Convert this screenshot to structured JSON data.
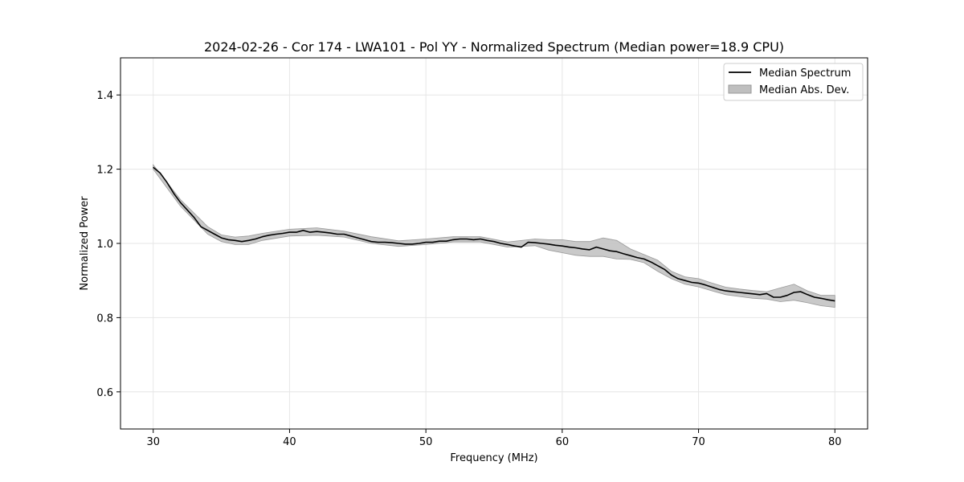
{
  "chart_data": {
    "type": "line",
    "title": "2024-02-26 - Cor 174 - LWA101 - Pol YY - Normalized Spectrum (Median power=18.9 CPU)",
    "xlabel": "Frequency (MHz)",
    "ylabel": "Normalized Power",
    "xlim": [
      27.6,
      82.4
    ],
    "ylim": [
      0.5,
      1.5
    ],
    "xticks": [
      30,
      40,
      50,
      60,
      70,
      80
    ],
    "xtick_labels": [
      "30",
      "40",
      "50",
      "60",
      "70",
      "80"
    ],
    "yticks": [
      0.6,
      0.8,
      1.0,
      1.2,
      1.4
    ],
    "ytick_labels": [
      "0.6",
      "0.8",
      "1.0",
      "1.2",
      "1.4"
    ],
    "grid": true,
    "legend_position": "top-right",
    "colors": {
      "line": "#000000",
      "band": "#bfbfbf",
      "band_edge": "#999999",
      "grid": "#e6e6e6"
    },
    "series": [
      {
        "name": "Median Spectrum",
        "type": "line",
        "x": [
          30,
          30.5,
          31,
          31.5,
          32,
          32.5,
          33,
          33.5,
          34,
          34.5,
          35,
          35.5,
          36,
          36.5,
          37,
          37.5,
          38,
          38.5,
          39,
          39.5,
          40,
          40.5,
          41,
          41.5,
          42,
          42.5,
          43,
          43.5,
          44,
          44.5,
          45,
          45.5,
          46,
          46.5,
          47,
          47.5,
          48,
          48.5,
          49,
          49.5,
          50,
          50.5,
          51,
          51.5,
          52,
          52.5,
          53,
          53.5,
          54,
          54.5,
          55,
          55.5,
          56,
          56.5,
          57,
          57.5,
          58,
          58.5,
          59,
          59.5,
          60,
          60.5,
          61,
          61.5,
          62,
          62.5,
          63,
          63.5,
          64,
          64.5,
          65,
          65.5,
          66,
          66.5,
          67,
          67.5,
          68,
          68.5,
          69,
          69.5,
          70,
          70.5,
          71,
          71.5,
          72,
          72.5,
          73,
          73.5,
          74,
          74.5,
          75,
          75.5,
          76,
          76.5,
          77,
          77.5,
          78,
          78.5,
          79,
          79.5,
          80
        ],
        "values": [
          1.205,
          1.19,
          1.165,
          1.135,
          1.11,
          1.09,
          1.07,
          1.045,
          1.035,
          1.025,
          1.015,
          1.01,
          1.008,
          1.005,
          1.008,
          1.012,
          1.018,
          1.022,
          1.025,
          1.027,
          1.03,
          1.03,
          1.035,
          1.03,
          1.032,
          1.03,
          1.028,
          1.025,
          1.025,
          1.02,
          1.015,
          1.01,
          1.005,
          1.003,
          1.003,
          1.002,
          1.0,
          0.998,
          0.998,
          1.0,
          1.003,
          1.003,
          1.006,
          1.006,
          1.01,
          1.012,
          1.012,
          1.01,
          1.012,
          1.008,
          1.005,
          1.0,
          0.997,
          0.993,
          0.99,
          1.003,
          1.002,
          1.0,
          0.998,
          0.995,
          0.993,
          0.99,
          0.988,
          0.985,
          0.983,
          0.99,
          0.985,
          0.98,
          0.978,
          0.972,
          0.967,
          0.962,
          0.958,
          0.95,
          0.94,
          0.93,
          0.915,
          0.905,
          0.9,
          0.895,
          0.893,
          0.888,
          0.882,
          0.876,
          0.872,
          0.87,
          0.868,
          0.866,
          0.864,
          0.862,
          0.865,
          0.855,
          0.855,
          0.86,
          0.868,
          0.87,
          0.862,
          0.855,
          0.852,
          0.848,
          0.845
        ]
      },
      {
        "name": "Median Abs. Dev.",
        "type": "band",
        "x": [
          30,
          32,
          34,
          35,
          36,
          37,
          38,
          40,
          42,
          44,
          46,
          48,
          50,
          52,
          54,
          56,
          58,
          59,
          60,
          61,
          62,
          63,
          64,
          65,
          66,
          67,
          68,
          69,
          70,
          71,
          72,
          73,
          74,
          75,
          76,
          77,
          78,
          79,
          80
        ],
        "lower": [
          1.2,
          1.1,
          1.025,
          1.005,
          0.997,
          0.997,
          1.008,
          1.02,
          1.022,
          1.017,
          1.0,
          0.992,
          0.997,
          1.004,
          1.004,
          0.99,
          0.994,
          0.982,
          0.975,
          0.968,
          0.965,
          0.965,
          0.958,
          0.957,
          0.948,
          0.925,
          0.905,
          0.89,
          0.883,
          0.872,
          0.862,
          0.857,
          0.852,
          0.85,
          0.843,
          0.847,
          0.84,
          0.832,
          0.828
        ],
        "upper": [
          1.212,
          1.118,
          1.045,
          1.023,
          1.017,
          1.02,
          1.027,
          1.038,
          1.042,
          1.033,
          1.018,
          1.007,
          1.012,
          1.018,
          1.018,
          1.004,
          1.012,
          1.01,
          1.01,
          1.005,
          1.005,
          1.015,
          1.008,
          0.985,
          0.97,
          0.955,
          0.925,
          0.91,
          0.905,
          0.893,
          0.882,
          0.877,
          0.873,
          0.87,
          0.88,
          0.89,
          0.872,
          0.86,
          0.86
        ]
      }
    ]
  },
  "legend": [
    {
      "label": "Median Spectrum"
    },
    {
      "label": "Median Abs. Dev."
    }
  ]
}
